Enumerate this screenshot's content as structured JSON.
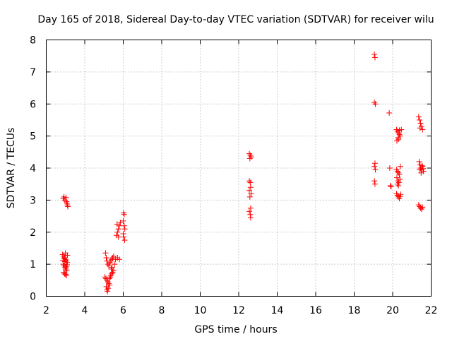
{
  "chart_data": {
    "type": "scatter",
    "title": "Day 165 of 2018, Sidereal Day-to-day VTEC variation (SDTVAR) for receiver wilu",
    "xlabel": "GPS time / hours",
    "ylabel": "SDTVAR / TECUs",
    "xlim": [
      2,
      22
    ],
    "ylim": [
      0,
      8
    ],
    "xticks": [
      "2",
      "4",
      "6",
      "8",
      "10",
      "12",
      "14",
      "16",
      "18",
      "20",
      "22"
    ],
    "yticks": [
      "0",
      "1",
      "2",
      "3",
      "4",
      "5",
      "6",
      "7",
      "8"
    ],
    "grid": true,
    "marker": "+",
    "series": [
      {
        "name": "SDTVAR",
        "color": "#ff0000",
        "points": [
          [
            2.88,
            3.05
          ],
          [
            2.92,
            3.1
          ],
          [
            2.97,
            3.0
          ],
          [
            3.02,
            3.08
          ],
          [
            3.05,
            2.95
          ],
          [
            3.08,
            2.9
          ],
          [
            3.1,
            2.85
          ],
          [
            3.12,
            2.8
          ],
          [
            2.85,
            1.3
          ],
          [
            2.9,
            1.25
          ],
          [
            2.95,
            1.2
          ],
          [
            3.0,
            1.15
          ],
          [
            3.05,
            1.1
          ],
          [
            3.1,
            1.28
          ],
          [
            2.88,
            1.0
          ],
          [
            2.92,
            0.95
          ],
          [
            2.98,
            0.9
          ],
          [
            3.02,
            0.85
          ],
          [
            3.07,
            0.8
          ],
          [
            2.9,
            0.75
          ],
          [
            2.95,
            0.7
          ],
          [
            3.0,
            0.68
          ],
          [
            3.05,
            0.65
          ],
          [
            3.1,
            1.05
          ],
          [
            2.87,
            1.12
          ],
          [
            2.93,
            1.18
          ],
          [
            3.0,
            1.35
          ],
          [
            3.08,
            0.98
          ],
          [
            2.96,
            1.08
          ],
          [
            3.04,
            0.92
          ],
          [
            5.08,
            1.35
          ],
          [
            5.12,
            1.2
          ],
          [
            5.15,
            1.1
          ],
          [
            5.2,
            1.0
          ],
          [
            5.25,
            0.95
          ],
          [
            5.3,
            1.05
          ],
          [
            5.35,
            1.1
          ],
          [
            5.4,
            1.15
          ],
          [
            5.45,
            1.2
          ],
          [
            5.5,
            1.25
          ],
          [
            5.55,
            1.0
          ],
          [
            5.6,
            1.15
          ],
          [
            5.05,
            0.6
          ],
          [
            5.1,
            0.55
          ],
          [
            5.15,
            0.5
          ],
          [
            5.2,
            0.45
          ],
          [
            5.25,
            0.4
          ],
          [
            5.3,
            0.35
          ],
          [
            5.35,
            0.65
          ],
          [
            5.4,
            0.7
          ],
          [
            5.45,
            0.75
          ],
          [
            5.5,
            0.8
          ],
          [
            5.12,
            0.3
          ],
          [
            5.15,
            0.2
          ],
          [
            5.18,
            0.15
          ],
          [
            5.22,
            0.25
          ],
          [
            5.28,
            0.55
          ],
          [
            5.33,
            0.6
          ],
          [
            5.38,
            0.85
          ],
          [
            5.42,
            0.9
          ],
          [
            5.7,
            1.2
          ],
          [
            5.8,
            1.15
          ],
          [
            5.65,
            1.9
          ],
          [
            5.7,
            2.0
          ],
          [
            5.75,
            2.1
          ],
          [
            5.8,
            2.2
          ],
          [
            5.85,
            2.3
          ],
          [
            5.75,
            1.85
          ],
          [
            5.68,
            2.25
          ],
          [
            6.02,
            2.6
          ],
          [
            6.05,
            2.55
          ],
          [
            6.0,
            2.35
          ],
          [
            6.05,
            2.2
          ],
          [
            6.08,
            2.1
          ],
          [
            6.0,
            1.95
          ],
          [
            6.02,
            1.85
          ],
          [
            6.07,
            1.75
          ],
          [
            12.55,
            4.45
          ],
          [
            12.6,
            4.4
          ],
          [
            12.65,
            4.35
          ],
          [
            12.58,
            4.3
          ],
          [
            12.55,
            3.6
          ],
          [
            12.6,
            3.55
          ],
          [
            12.62,
            3.4
          ],
          [
            12.55,
            3.3
          ],
          [
            12.65,
            3.2
          ],
          [
            12.58,
            3.1
          ],
          [
            12.62,
            2.75
          ],
          [
            12.55,
            2.65
          ],
          [
            12.6,
            2.55
          ],
          [
            12.62,
            2.45
          ],
          [
            19.05,
            7.55
          ],
          [
            19.08,
            7.45
          ],
          [
            19.05,
            6.05
          ],
          [
            19.1,
            6.0
          ],
          [
            19.08,
            4.15
          ],
          [
            19.05,
            4.05
          ],
          [
            19.1,
            3.95
          ],
          [
            19.05,
            3.6
          ],
          [
            19.08,
            3.5
          ],
          [
            19.82,
            5.72
          ],
          [
            19.85,
            4.0
          ],
          [
            19.88,
            3.45
          ],
          [
            19.92,
            3.42
          ],
          [
            20.2,
            5.2
          ],
          [
            20.25,
            5.15
          ],
          [
            20.3,
            5.1
          ],
          [
            20.35,
            5.05
          ],
          [
            20.4,
            5.0
          ],
          [
            20.45,
            5.2
          ],
          [
            20.28,
            4.95
          ],
          [
            20.22,
            4.85
          ],
          [
            20.3,
            4.9
          ],
          [
            20.35,
            5.18
          ],
          [
            20.2,
            3.95
          ],
          [
            20.25,
            3.9
          ],
          [
            20.3,
            3.85
          ],
          [
            20.35,
            3.8
          ],
          [
            20.4,
            4.05
          ],
          [
            20.22,
            3.7
          ],
          [
            20.28,
            3.6
          ],
          [
            20.32,
            3.55
          ],
          [
            20.38,
            3.65
          ],
          [
            20.25,
            3.5
          ],
          [
            20.3,
            3.45
          ],
          [
            20.2,
            3.2
          ],
          [
            20.25,
            3.15
          ],
          [
            20.3,
            3.1
          ],
          [
            20.35,
            3.05
          ],
          [
            20.42,
            3.18
          ],
          [
            20.4,
            3.12
          ],
          [
            21.35,
            5.6
          ],
          [
            21.4,
            5.5
          ],
          [
            21.45,
            5.4
          ],
          [
            21.5,
            5.3
          ],
          [
            21.55,
            5.2
          ],
          [
            21.42,
            5.25
          ],
          [
            21.38,
            4.2
          ],
          [
            21.42,
            4.1
          ],
          [
            21.45,
            4.0
          ],
          [
            21.5,
            3.95
          ],
          [
            21.55,
            4.05
          ],
          [
            21.6,
            3.9
          ],
          [
            21.4,
            3.95
          ],
          [
            21.48,
            3.85
          ],
          [
            21.52,
            4.08
          ],
          [
            21.58,
            3.98
          ],
          [
            21.35,
            2.85
          ],
          [
            21.4,
            2.8
          ],
          [
            21.45,
            2.75
          ],
          [
            21.5,
            2.72
          ],
          [
            21.55,
            2.78
          ]
        ]
      }
    ]
  }
}
